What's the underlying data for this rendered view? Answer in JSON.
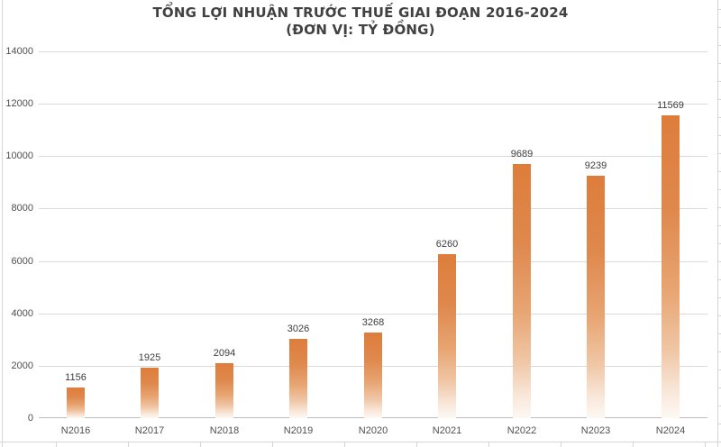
{
  "chart_data": {
    "type": "bar",
    "title": "TỔNG LỢI NHUẬN TRƯỚC THUẾ GIAI ĐOẠN 2016-2024",
    "subtitle": "(ĐƠN VỊ: TỶ ĐỒNG)",
    "categories": [
      "N2016",
      "N2017",
      "N2018",
      "N2019",
      "N2020",
      "N2021",
      "N2022",
      "N2023",
      "N2024"
    ],
    "values": [
      1156,
      1925,
      2094,
      3026,
      3268,
      6260,
      9689,
      9239,
      11569
    ],
    "xlabel": "",
    "ylabel": "",
    "ylim": [
      0,
      14000
    ],
    "ytick_step": 2000,
    "grid": true,
    "legend": "none"
  },
  "style": {
    "background": "#FFFFFF",
    "title_color": "#414141",
    "axis_label_color": "#4F4F4F",
    "data_label_color": "#3C3C3C",
    "gridline_color": "#D9D9D9",
    "baseline_color": "#BDBDBD",
    "sheet_line_color": "#D5D5D5",
    "bar_gradient_stops": [
      [
        "#DD7D3B",
        "0%"
      ],
      [
        "#DF894E",
        "32%"
      ],
      [
        "#E8A572",
        "58%"
      ],
      [
        "#F0C7A7",
        "78%"
      ],
      [
        "#F9E9DC",
        "92%"
      ],
      [
        "#FDF8F4",
        "100%"
      ]
    ]
  }
}
